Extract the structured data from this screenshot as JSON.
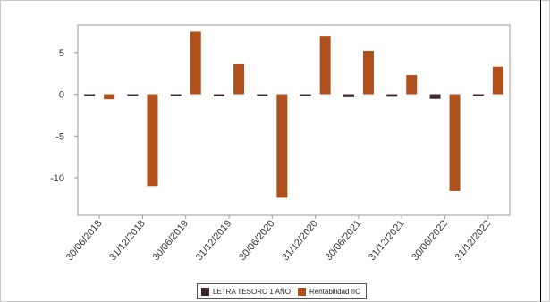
{
  "chart_data": {
    "type": "bar",
    "categories": [
      "30/06/2018",
      "31/12/2018",
      "30/06/2019",
      "31/12/2019",
      "30/06/2020",
      "31/12/2020",
      "30/06/2021",
      "31/12/2021",
      "30/06/2022",
      "31/12/2022"
    ],
    "series": [
      {
        "name": "LETRA TESORO 1 AÑO",
        "color": "#3b2630",
        "values": [
          -0.2,
          -0.2,
          -0.15,
          -0.25,
          -0.15,
          -0.2,
          -0.35,
          -0.3,
          -0.55,
          -0.15
        ]
      },
      {
        "name": "Rentabilidad IIC",
        "color": "#b0501c",
        "values": [
          -0.6,
          -11.0,
          7.5,
          3.6,
          -12.4,
          7.0,
          5.2,
          2.3,
          -11.6,
          3.3
        ]
      }
    ],
    "yticks": [
      5,
      0,
      -5,
      -10
    ],
    "ylim": [
      -14.5,
      8.3
    ],
    "legend_position": "bottom",
    "grid": false
  }
}
